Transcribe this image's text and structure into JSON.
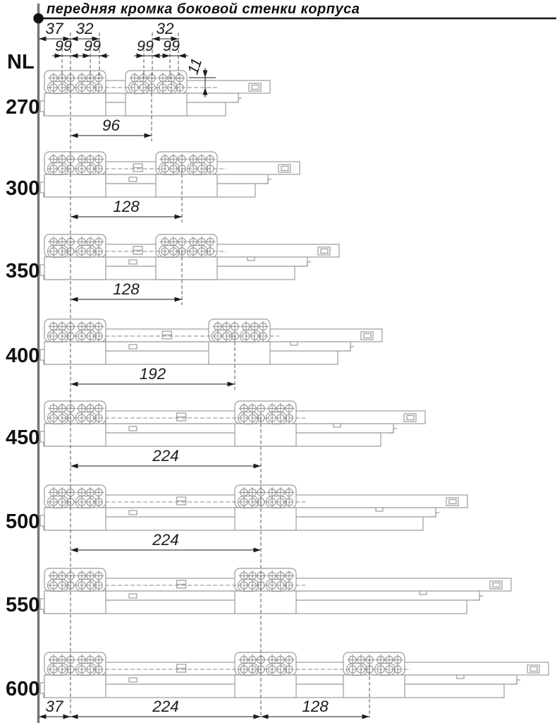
{
  "title": "передняя кромка боковой стенки корпуса",
  "axis_label": "NL",
  "rows": [
    {
      "label": "270",
      "spacing_dim": "96"
    },
    {
      "label": "300",
      "spacing_dim": "128"
    },
    {
      "label": "350",
      "spacing_dim": "128"
    },
    {
      "label": "400",
      "spacing_dim": "192"
    },
    {
      "label": "450",
      "spacing_dim": "224"
    },
    {
      "label": "500",
      "spacing_dim": "224"
    },
    {
      "label": "550",
      "spacing_dim": ""
    },
    {
      "label": "600",
      "spacing_dim": ""
    }
  ],
  "top_dimensions": {
    "offset_front": "37",
    "pitch_a": "32",
    "pitch_b": "32",
    "hole_dims": [
      "99",
      "99",
      "99",
      "99"
    ],
    "height_offset": "11"
  },
  "bottom_dimensions": {
    "offset_front": "37",
    "span_a": "224",
    "span_b": "128"
  },
  "colors": {
    "drawing": "#9b9b9b",
    "dimension": "#1c1c1c",
    "reference_dash": "#555555",
    "front_edge_line": "#757575",
    "background": "#ffffff"
  }
}
